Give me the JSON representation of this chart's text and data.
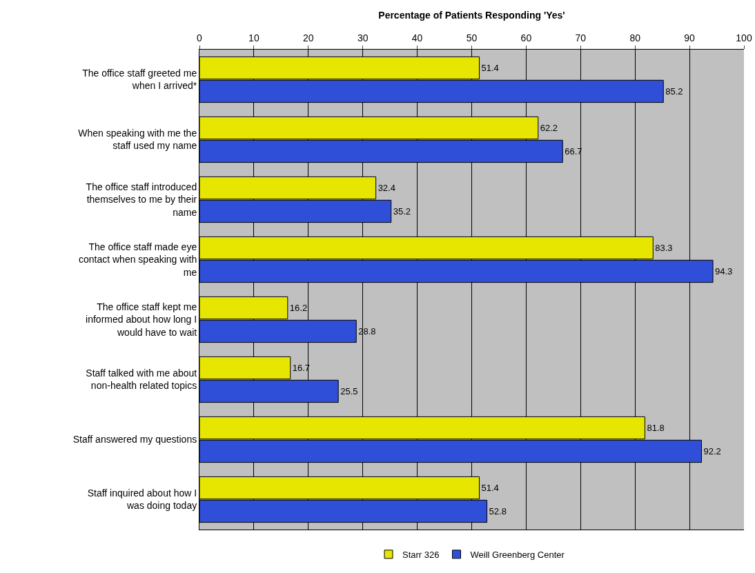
{
  "chart_data": {
    "type": "bar",
    "orientation": "horizontal",
    "xlabel": "Percentage of Patients Responding 'Yes'",
    "categories": [
      "The office staff greeted me when I arrived*",
      "When speaking with me the staff used my name",
      "The office staff introduced themselves to me by their name",
      "The office staff made eye contact when speaking with me",
      "The office staff kept me informed about how long I would have to wait",
      "Staff talked with me about non-health related topics",
      "Staff answered my questions",
      "Staff inquired about how I was doing today"
    ],
    "series": [
      {
        "name": "Starr 326",
        "color": "#e6e600",
        "values": [
          51.4,
          62.2,
          32.4,
          83.3,
          16.2,
          16.7,
          81.8,
          51.4
        ]
      },
      {
        "name": "Weill Greenberg Center",
        "color": "#2f4fd8",
        "values": [
          85.2,
          66.7,
          35.2,
          94.3,
          28.8,
          25.5,
          92.2,
          52.8
        ]
      }
    ],
    "xlim": [
      0,
      100
    ],
    "xticks": [
      0,
      10,
      20,
      30,
      40,
      50,
      60,
      70,
      80,
      90,
      100
    ],
    "grid": "x",
    "legend": "bottom",
    "data_labels": true
  }
}
